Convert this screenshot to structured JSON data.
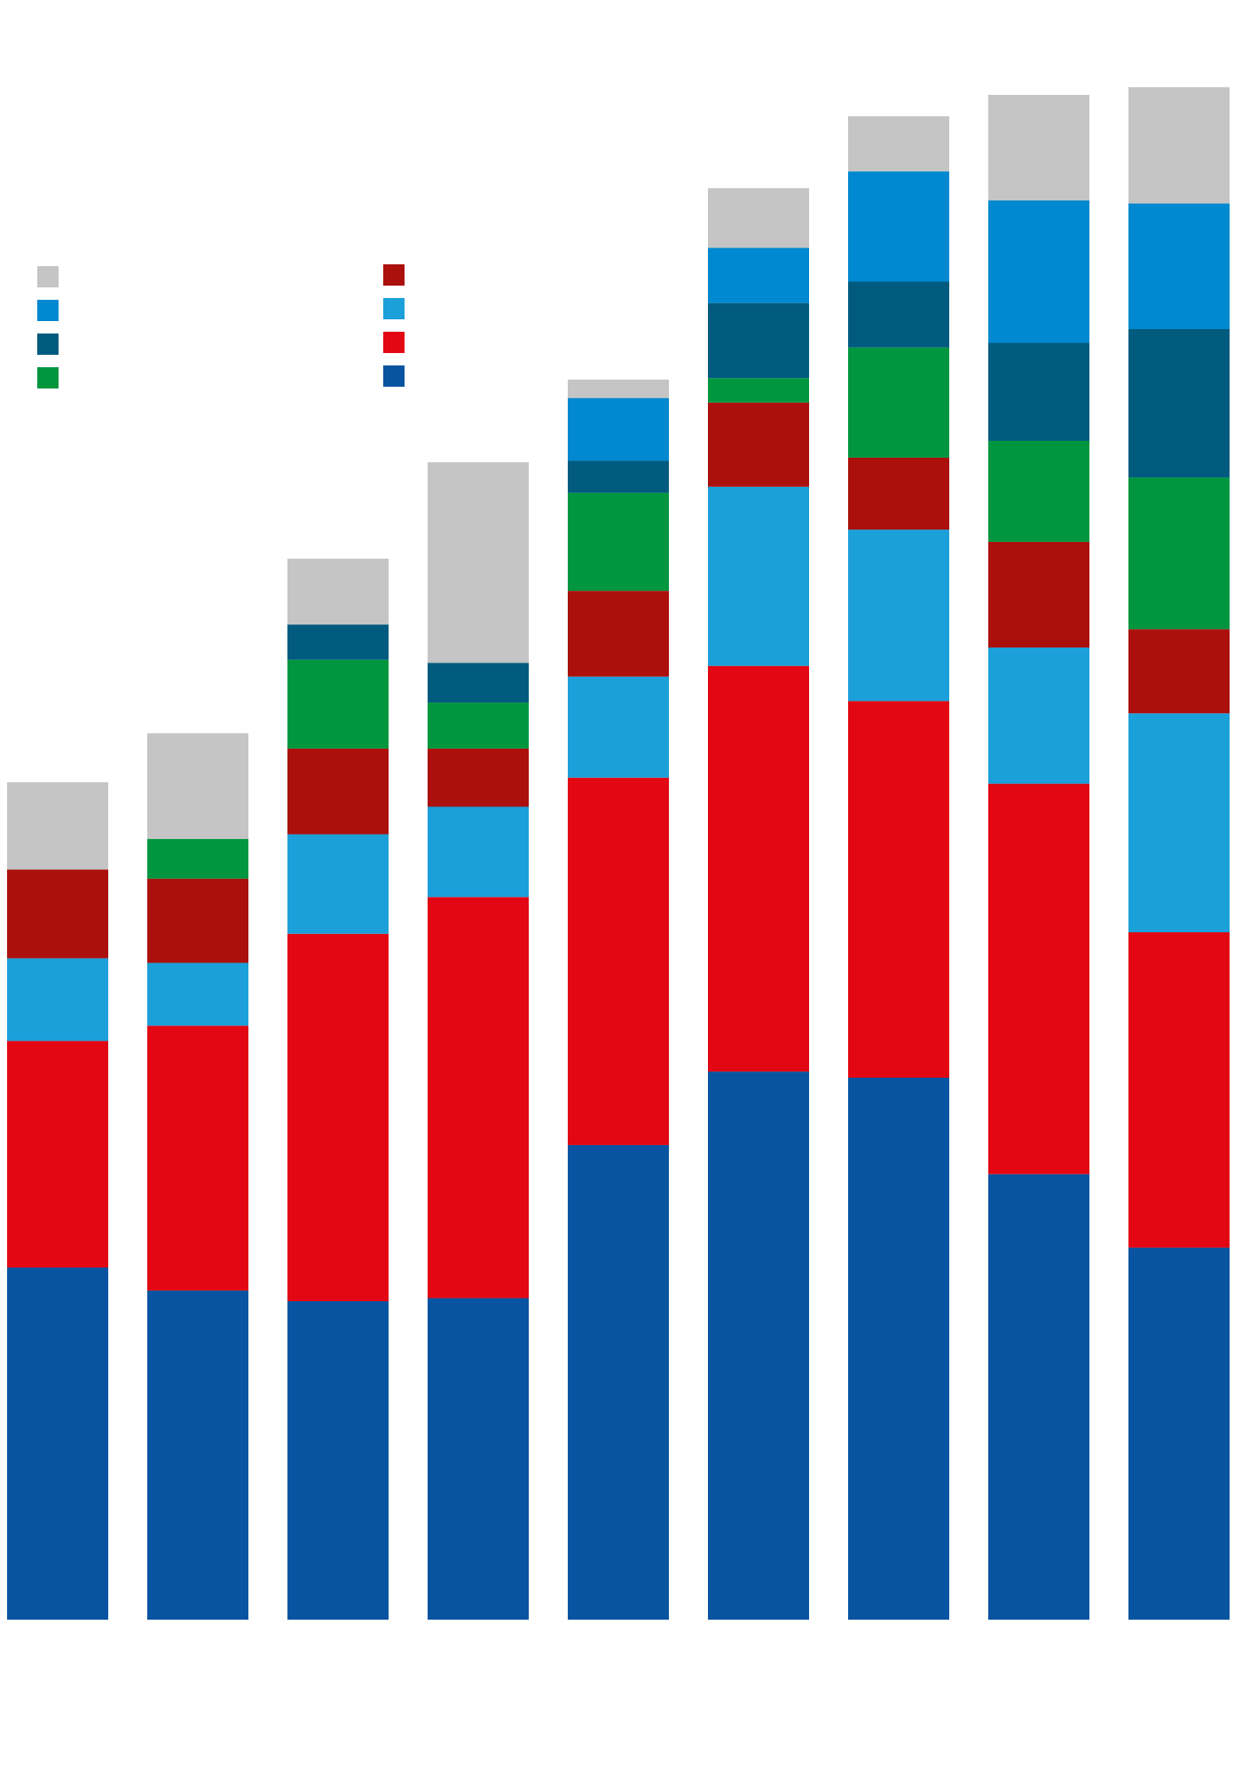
{
  "chart_data": {
    "type": "bar",
    "stacked": true,
    "title": "",
    "xlabel": "",
    "ylabel": "",
    "ylim": [
      0,
      100
    ],
    "grid": false,
    "legend": "top-left",
    "categories": [
      "",
      "",
      "",
      "",
      "",
      "",
      "",
      "",
      ""
    ],
    "series": [
      {
        "color": "#0954a1",
        "values": [
          23.0,
          21.5,
          20.8,
          21.0,
          31.0,
          35.8,
          35.4,
          29.1,
          24.3
        ]
      },
      {
        "color": "#e20713",
        "values": [
          14.8,
          17.3,
          24.0,
          26.2,
          24.0,
          26.5,
          24.6,
          25.5,
          20.6
        ]
      },
      {
        "color": "#1ba0da",
        "values": [
          5.4,
          4.1,
          6.5,
          5.9,
          6.6,
          11.7,
          11.2,
          8.9,
          14.3
        ]
      },
      {
        "color": "#ab100d",
        "values": [
          5.8,
          5.5,
          5.6,
          3.8,
          5.6,
          5.5,
          4.7,
          6.9,
          5.5
        ]
      },
      {
        "color": "#00963f",
        "values": [
          0,
          2.6,
          5.8,
          3.0,
          6.4,
          1.6,
          7.2,
          6.6,
          9.9
        ]
      },
      {
        "color": "#005b7f",
        "values": [
          0,
          0,
          2.3,
          2.6,
          2.1,
          4.9,
          4.3,
          6.4,
          9.7
        ]
      },
      {
        "color": "#0088d0",
        "values": [
          0,
          0,
          0,
          0,
          4.1,
          3.6,
          7.2,
          9.3,
          8.2
        ]
      },
      {
        "color": "#c5c5c5",
        "values": [
          5.7,
          6.9,
          4.3,
          13.1,
          1.2,
          3.9,
          3.6,
          6.9,
          7.6
        ]
      }
    ],
    "legend_items": [
      {
        "color": "#c5c5c5",
        "label": ""
      },
      {
        "color": "#0088d0",
        "label": ""
      },
      {
        "color": "#005b7f",
        "label": ""
      },
      {
        "color": "#00963f",
        "label": ""
      },
      {
        "color": "#ab100d",
        "label": ""
      },
      {
        "color": "#1ba0da",
        "label": ""
      },
      {
        "color": "#e20713",
        "label": ""
      },
      {
        "color": "#0954a1",
        "label": ""
      }
    ]
  }
}
